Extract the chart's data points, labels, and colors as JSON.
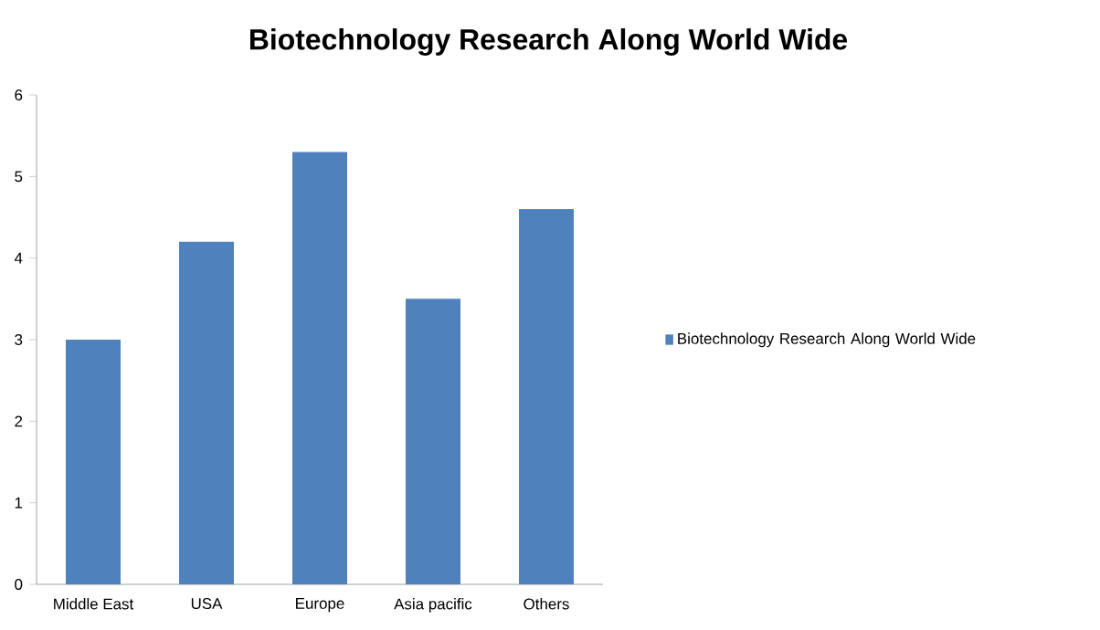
{
  "chart_data": {
    "type": "bar",
    "title": "Biotechnology Research Along World Wide",
    "categories": [
      "Middle East",
      "USA",
      "Europe",
      "Asia pacific",
      "Others"
    ],
    "series": [
      {
        "name": "Biotechnology Research Along World Wide",
        "color": "#4f81bd",
        "values": [
          3,
          4.2,
          5.3,
          3.5,
          4.6
        ]
      }
    ],
    "ylim": [
      0,
      6
    ],
    "yticks": [
      0,
      1,
      2,
      3,
      4,
      5,
      6
    ],
    "grid": false,
    "legend": "right"
  }
}
